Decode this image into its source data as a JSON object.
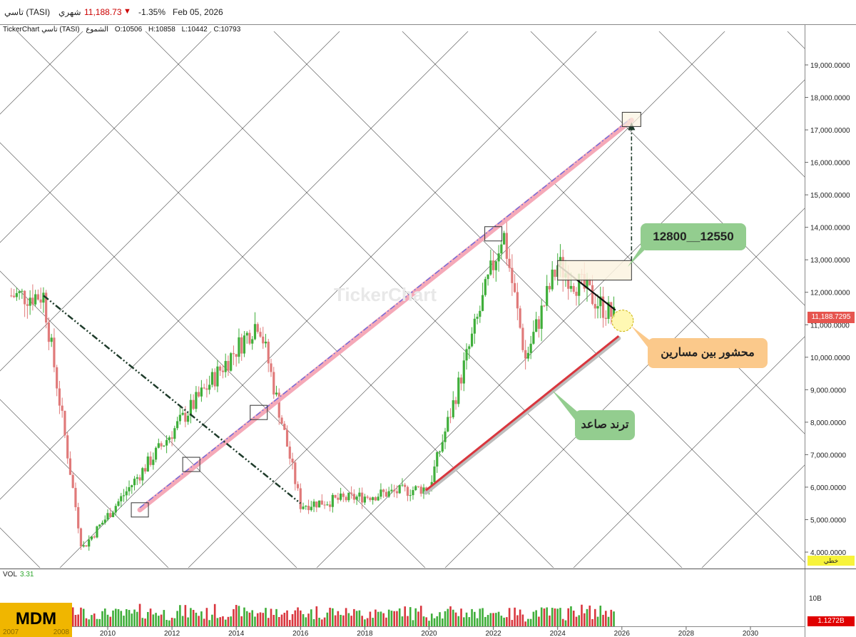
{
  "header": {
    "symbol": "تاسي (TASI)",
    "period": "شهري",
    "price": "11,188.73",
    "change_arrow": "▼",
    "change_pct": "-1.35%",
    "date": "Feb 05, 2026"
  },
  "ohlc": {
    "source": "TickerChart تاسي (TASI)",
    "type": "الشموع",
    "open": "O:10506",
    "high": "H:10858",
    "low": "L:10442",
    "close": "C:10793"
  },
  "watermark": "TickerChart",
  "annotations": {
    "target_range": "12800__12550",
    "squeeze": "محشور بين مسارين",
    "uptrend": "ترند صاعد"
  },
  "volume_panel": {
    "title": "VOL",
    "value": "3.31",
    "tick_label": "10B",
    "current": "1.1272B"
  },
  "price_axis": {
    "current_tag": "11,188.7295",
    "scale_label": "خطي"
  },
  "brand": {
    "logo": "MDM",
    "years": [
      "2007",
      "2008"
    ]
  },
  "colors": {
    "up": "#3fae3a",
    "down": "#e07a7a",
    "channel_pink": "#f5a9b8",
    "trend_red": "#d9363e",
    "grid_line": "#333333"
  },
  "chart_data": {
    "type": "candlestick",
    "symbol": "TASI",
    "interval": "monthly",
    "ylim": [
      4000,
      19500
    ],
    "yticks": [
      "19,000.0000",
      "18,000.0000",
      "17,000.0000",
      "16,000.0000",
      "15,000.0000",
      "14,000.0000",
      "13,000.0000",
      "12,000.0000",
      "11,000.0000",
      "10,000.0000",
      "9,000.0000",
      "8,000.0000",
      "7,000.0000",
      "6,000.0000",
      "5,000.0000",
      "4,000.0000"
    ],
    "xticks": [
      "2010",
      "2012",
      "2014",
      "2016",
      "2018",
      "2020",
      "2022",
      "2024",
      "2026",
      "2028",
      "2030"
    ],
    "xrange": [
      2007.5,
      2031.0
    ],
    "key_points": [
      {
        "x": 2008.0,
        "y": 11900
      },
      {
        "x": 2009.2,
        "y": 4100
      },
      {
        "x": 2014.7,
        "y": 11150
      },
      {
        "x": 2016.0,
        "y": 5450
      },
      {
        "x": 2020.0,
        "y": 5990
      },
      {
        "x": 2022.3,
        "y": 13900
      },
      {
        "x": 2023.0,
        "y": 9950
      },
      {
        "x": 2024.0,
        "y": 12850
      },
      {
        "x": 2025.8,
        "y": 11188
      }
    ],
    "trendlines": [
      {
        "name": "upper_channel",
        "from": [
          2011.0,
          5300
        ],
        "to": [
          2026.3,
          17300
        ]
      },
      {
        "name": "uptrend",
        "from": [
          2019.9,
          5900
        ],
        "to": [
          2025.9,
          10650
        ]
      },
      {
        "name": "downtrend_2008",
        "from": [
          2008.0,
          11900
        ],
        "to": [
          2016.0,
          5500
        ]
      },
      {
        "name": "downtrend_2024",
        "from": [
          2024.0,
          12850
        ],
        "to": [
          2025.8,
          11450
        ]
      }
    ],
    "target_zone": {
      "from": 12550,
      "to": 12800
    },
    "target_price": 17300,
    "volume_ylim": [
      0,
      20
    ],
    "current_price": 11188.73
  }
}
